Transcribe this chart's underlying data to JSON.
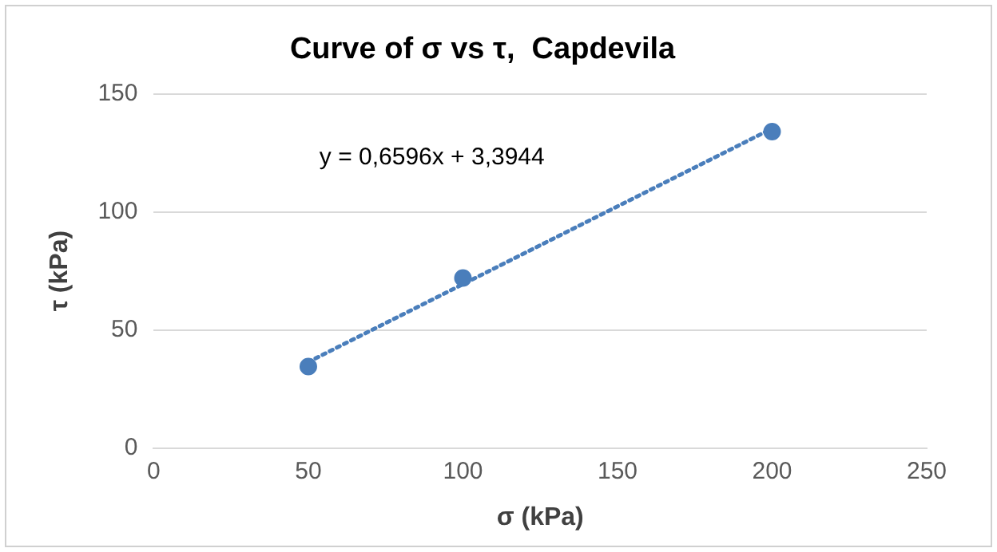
{
  "chart_data": {
    "type": "scatter",
    "title": "Curve of σ vs τ,  Capdevila",
    "xlabel": "σ (kPa)",
    "ylabel": "τ (kPa)",
    "series": [
      {
        "color": "#4a7ebb",
        "x": [
          50,
          100,
          200
        ],
        "values": [
          34.5,
          72,
          134
        ]
      },
      {
        "type": "line",
        "color": "#4a7ebb",
        "x": [
          50,
          200
        ],
        "values": [
          36.4,
          135.3
        ],
        "line_style": "dotted",
        "marker": "none"
      }
    ],
    "xlim": [
      0,
      250
    ],
    "xticks": [
      0,
      50,
      100,
      150,
      200,
      250
    ],
    "ylim": [
      0,
      150
    ],
    "yticks": [
      0,
      50,
      100,
      150
    ],
    "grid": "y",
    "legend": false,
    "marker": "circle",
    "annotations": [
      "y = 0,6596x + 3,3944"
    ]
  }
}
